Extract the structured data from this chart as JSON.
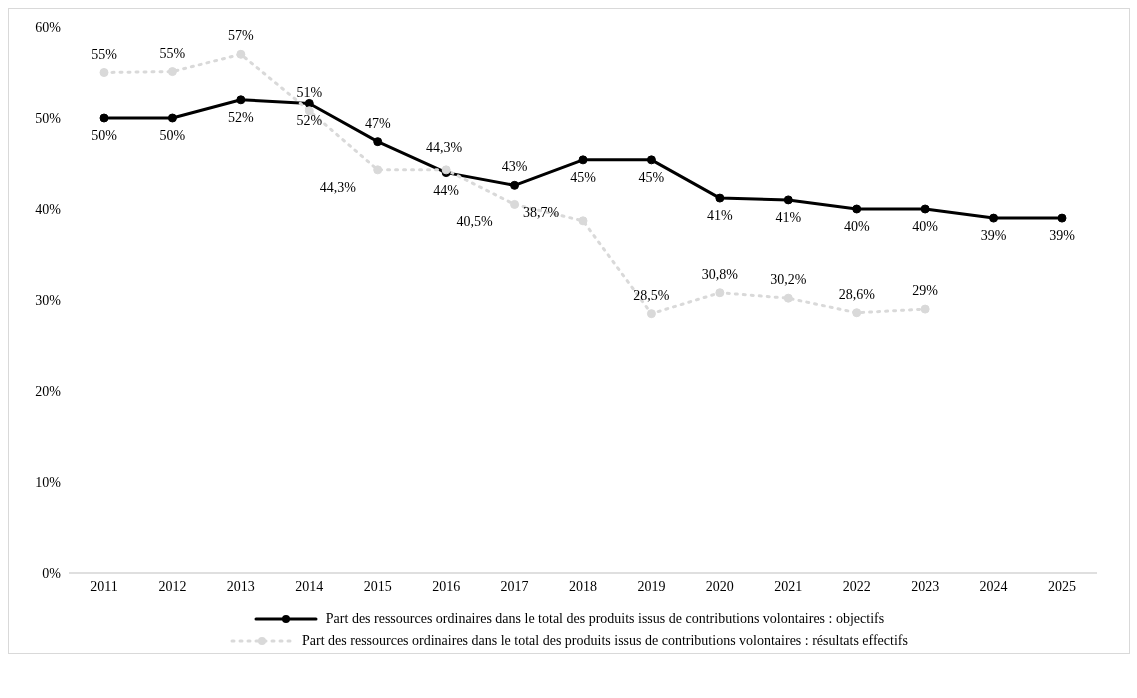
{
  "chart_data": {
    "type": "line",
    "categories": [
      "2011",
      "2012",
      "2013",
      "2014",
      "2015",
      "2016",
      "2017",
      "2018",
      "2019",
      "2020",
      "2021",
      "2022",
      "2023",
      "2024",
      "2025"
    ],
    "series": [
      {
        "name": "Part des ressources ordinaires dans le total des produits issus de contributions volontaires : objectifs",
        "color": "#000000",
        "line_style": "solid",
        "values": [
          50,
          50,
          52,
          51.6,
          47.4,
          44,
          42.6,
          45.4,
          45.4,
          41.2,
          41,
          40,
          40,
          39,
          39
        ],
        "value_labels": [
          "50%",
          "50%",
          "52%",
          "52%",
          "47%",
          "44%",
          "43%",
          "45%",
          "45%",
          "41%",
          "41%",
          "40%",
          "40%",
          "39%",
          "39%"
        ]
      },
      {
        "name": "Part des ressources ordinaires dans le total des produits issus de contributions volontaires : résultats effectifs",
        "color": "#d9d9d9",
        "line_style": "dotted",
        "values": [
          55,
          55.1,
          57,
          50.8,
          44.3,
          44.3,
          40.5,
          38.7,
          28.5,
          30.8,
          30.2,
          28.6,
          29,
          null,
          null
        ],
        "value_labels": [
          "55%",
          "55%",
          "57%",
          "51%",
          "44,3%",
          "44,3%",
          "40,5%",
          "38,7%",
          "28,5%",
          "30,8%",
          "30,2%",
          "28,6%",
          "29%",
          null,
          null
        ]
      }
    ],
    "ylim": [
      0,
      60
    ],
    "yticks": [
      {
        "value": 0,
        "label": "0%"
      },
      {
        "value": 10,
        "label": "10%"
      },
      {
        "value": 20,
        "label": "20%"
      },
      {
        "value": 30,
        "label": "30%"
      },
      {
        "value": 40,
        "label": "40%"
      },
      {
        "value": 50,
        "label": "50%"
      },
      {
        "value": 60,
        "label": "60%"
      }
    ],
    "marker": "circle",
    "legend": "bottom",
    "grid": false
  }
}
